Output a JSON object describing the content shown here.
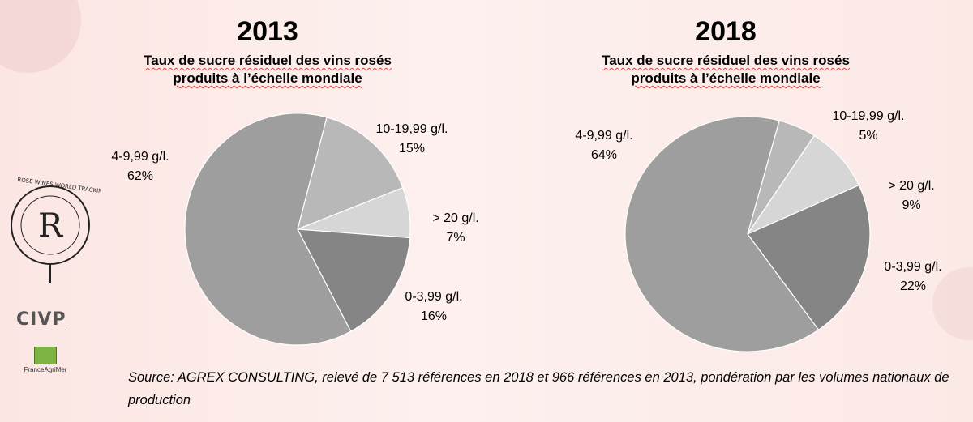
{
  "chart_data": [
    {
      "type": "pie",
      "title": "2013",
      "subtitle_line1": "Taux de sucre résiduel des vins rosés",
      "subtitle_line2": "produits à l’échelle mondiale",
      "slices": [
        {
          "label": "10-19,99 g/l.",
          "value": 15,
          "pct_text": "15%",
          "color": "#b8b8b8"
        },
        {
          "label": "> 20 g/l.",
          "value": 7,
          "pct_text": "7%",
          "color": "#d6d6d6"
        },
        {
          "label": "0-3,99 g/l.",
          "value": 16,
          "pct_text": "16%",
          "color": "#858585"
        },
        {
          "label": "4-9,99 g/l.",
          "value": 62,
          "pct_text": "62%",
          "color": "#9e9e9e"
        }
      ]
    },
    {
      "type": "pie",
      "title": "2018",
      "subtitle_line1": "Taux de sucre résiduel des vins rosés",
      "subtitle_line2": "produits à l’échelle mondiale",
      "slices": [
        {
          "label": "10-19,99 g/l.",
          "value": 5,
          "pct_text": "5%",
          "color": "#b8b8b8"
        },
        {
          "label": "> 20 g/l.",
          "value": 9,
          "pct_text": "9%",
          "color": "#d6d6d6"
        },
        {
          "label": "0-3,99 g/l.",
          "value": 22,
          "pct_text": "22%",
          "color": "#858585"
        },
        {
          "label": "4-9,99 g/l.",
          "value": 64,
          "pct_text": "64%",
          "color": "#9e9e9e"
        }
      ]
    }
  ],
  "source_text": "Source: AGREX CONSULTING, relevé de 7 513 références en 2018 et  966 références en 2013, pondération par les volumes nationaux de production",
  "logos": {
    "rose_wines": "ROSÉ WINES WORLD TRACKING",
    "rose_wines_letter": "R",
    "civp": "CIVP",
    "franceagrimer": "FranceAgriMer"
  }
}
